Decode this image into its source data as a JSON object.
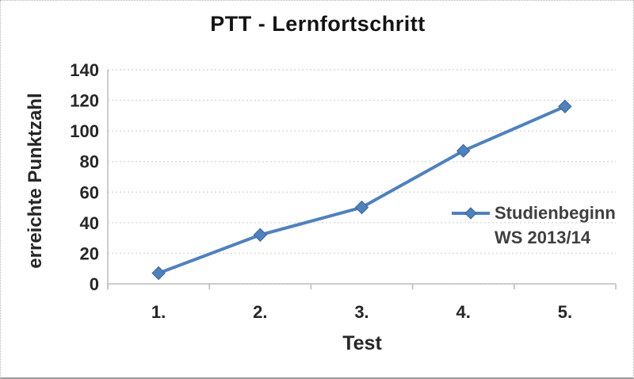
{
  "chart_data": {
    "type": "line",
    "title": "PTT - Lernfortschritt",
    "xlabel": "Test",
    "ylabel": "erreichte Punktzahl",
    "categories": [
      "1.",
      "2.",
      "3.",
      "4.",
      "5."
    ],
    "series": [
      {
        "name": "Studienbeginn WS 2013/14",
        "values": [
          7,
          32,
          50,
          87,
          116
        ]
      }
    ],
    "legend_lines": [
      "Studienbeginn",
      "WS 2013/14"
    ],
    "legend_position": "inside-right",
    "yticks": [
      0,
      20,
      40,
      60,
      80,
      100,
      120,
      140
    ],
    "ylim": [
      0,
      140
    ],
    "grid": true,
    "colors": {
      "line": "#4F81BD",
      "marker_edge": "#3A6599",
      "grid": "#D9D9D9",
      "axis": "#BFBFBF"
    }
  }
}
